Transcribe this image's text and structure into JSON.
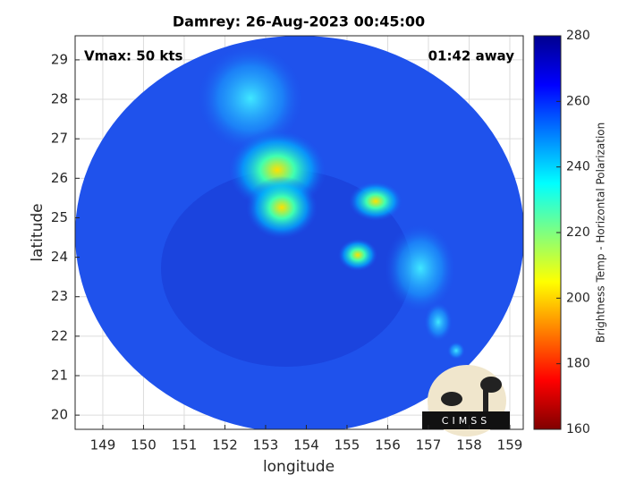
{
  "chart_data": {
    "type": "image",
    "title": "Damrey: 26-Aug-2023 00:45:00",
    "annotations": [
      "Vmax: 50 kts",
      "01:42 away"
    ],
    "x_label": "longitude",
    "y_label": "latitude",
    "xlim": [
      148.32,
      159.33
    ],
    "xticks": [
      149,
      150,
      151,
      152,
      153,
      154,
      155,
      156,
      157,
      158,
      159
    ],
    "ylim": [
      19.64,
      29.61
    ],
    "yticks": [
      20,
      21,
      22,
      23,
      24,
      25,
      26,
      27,
      28,
      29
    ],
    "grid": true,
    "colorbar": {
      "label": "Brightness Temp - Horizontal Polarization",
      "lim": [
        160,
        280
      ],
      "ticks": [
        160,
        180,
        200,
        220,
        240,
        260,
        280
      ]
    },
    "logo": "CIMSS"
  }
}
